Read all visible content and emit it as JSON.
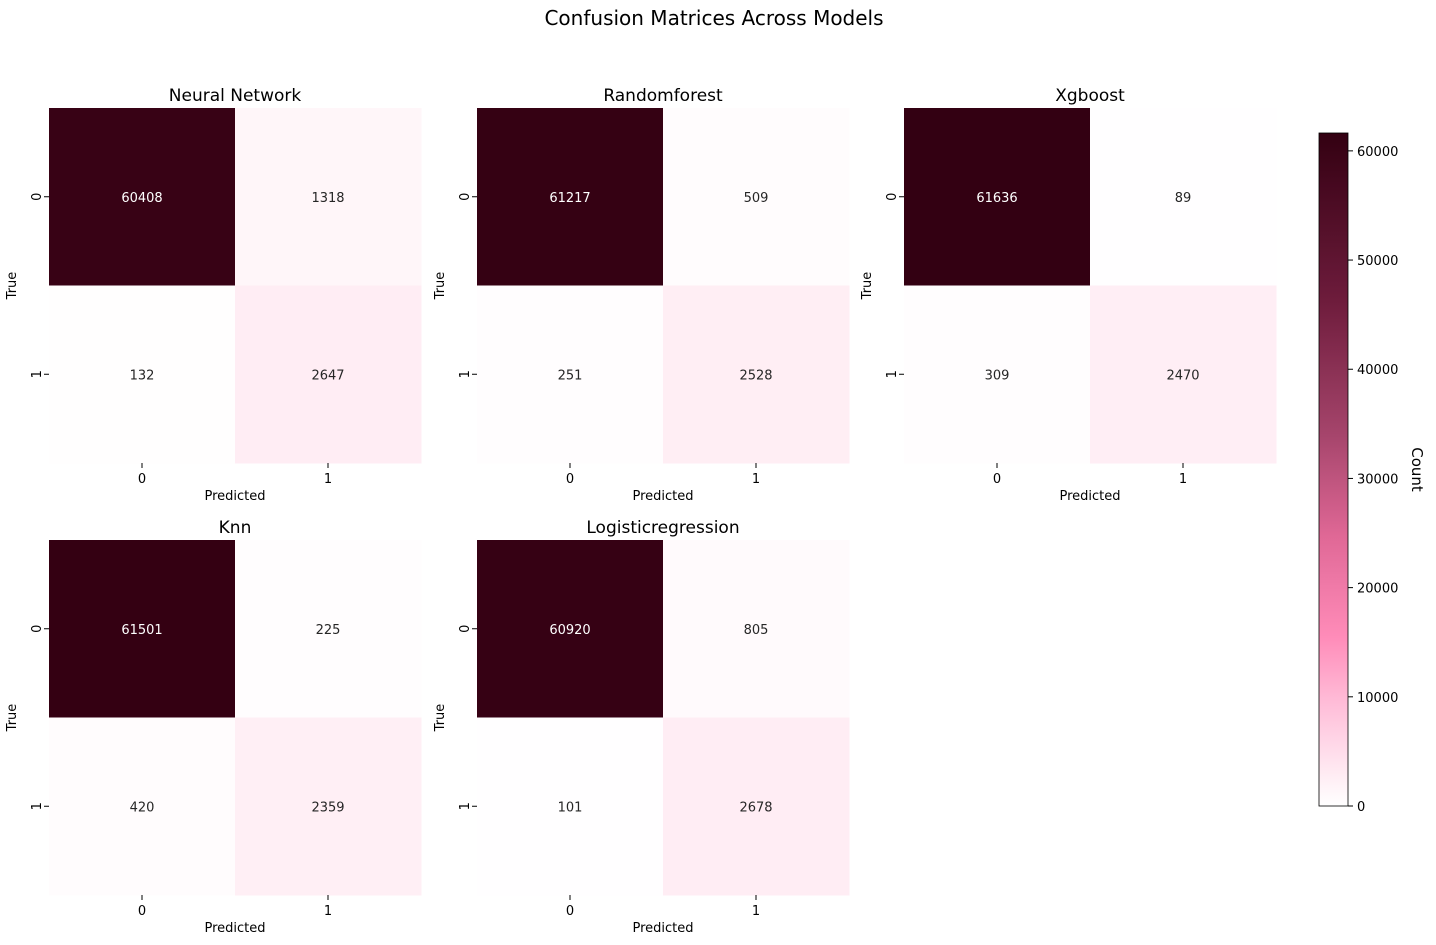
{
  "title": "Confusion Matrices Across Models",
  "chart_data": {
    "type": "heatmap",
    "title": "Confusion Matrices Across Models",
    "xlabel": "Predicted",
    "ylabel": "True",
    "x_categories": [
      "0",
      "1"
    ],
    "y_categories": [
      "0",
      "1"
    ],
    "matrices": [
      {
        "name": "Neural Network",
        "values": [
          [
            60408,
            1318
          ],
          [
            132,
            2647
          ]
        ]
      },
      {
        "name": "Randomforest",
        "values": [
          [
            61217,
            509
          ],
          [
            251,
            2528
          ]
        ]
      },
      {
        "name": "Xgboost",
        "values": [
          [
            61636,
            89
          ],
          [
            309,
            2470
          ]
        ]
      },
      {
        "name": "Knn",
        "values": [
          [
            61501,
            225
          ],
          [
            420,
            2359
          ]
        ]
      },
      {
        "name": "Logisticregression",
        "values": [
          [
            60920,
            805
          ],
          [
            101,
            2678
          ]
        ]
      }
    ],
    "colorbar": {
      "label": "Count",
      "vmin": 0,
      "vmax": 61636,
      "ticks": [
        0,
        10000,
        20000,
        30000,
        40000,
        50000,
        60000
      ]
    },
    "colors": {
      "low": "#ffffff",
      "mid_pink": "#ff82b4",
      "mid": "#a62a5d",
      "high": "#330012",
      "text_dark_cell": "#ffffff",
      "text_light_cell": "#262626"
    }
  }
}
